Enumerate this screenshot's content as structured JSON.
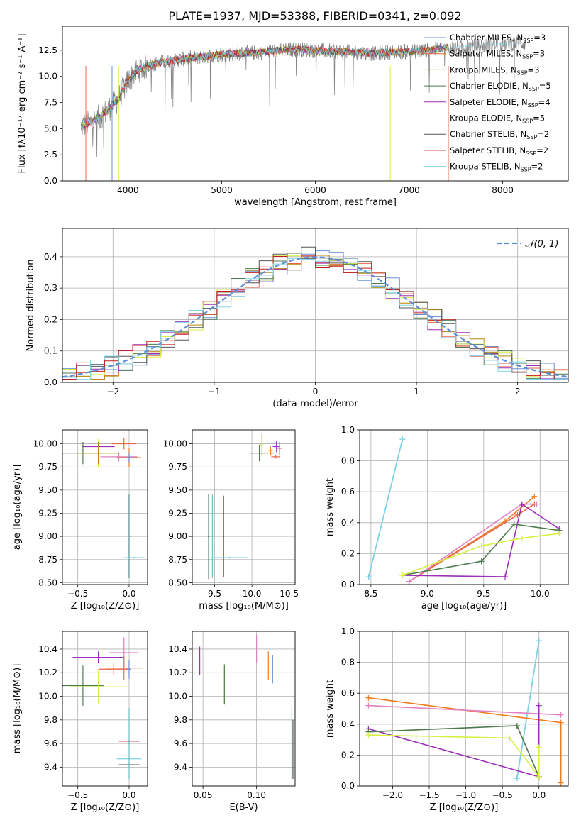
{
  "figure": {
    "title": "PLATE=1937, MJD=53388, FIBERID=0341, z=0.092"
  },
  "colors": {
    "Chabrier MILES": "#6a8fd6",
    "Salpeter MILES": "#e8664a",
    "Kroupa MILES": "#b8860b",
    "Chabrier ELODIE": "#4e7a4e",
    "Salpeter ELODIE": "#9b2fb8",
    "Kroupa ELODIE": "#d7ef3f",
    "Chabrier STELIB": "#555555",
    "Salpeter STELIB": "#c41e1e",
    "Kroupa STELIB": "#7fd3e6",
    "data": "#808080",
    "grid": "#b0b0b0",
    "normal": "#5b8fd9",
    "orange": "#f07c1c",
    "pink": "#e080c0",
    "teal": "#6dbcc0"
  },
  "chart_data": [
    {
      "id": "spectrum",
      "type": "line",
      "title": "PLATE=1937, MJD=53388, FIBERID=0341, z=0.092",
      "xlabel": "wavelength [Angstrom, rest frame]",
      "ylabel": "Flux [fλ10⁻¹⁷ erg cm⁻² s⁻¹ A⁻¹]",
      "xlim": [
        3300,
        8700
      ],
      "ylim": [
        0,
        14.8
      ],
      "xticks": [
        "4000",
        "5000",
        "6000",
        "7000",
        "8000"
      ],
      "yticks": [
        "0.0",
        "2.5",
        "5.0",
        "7.5",
        "10.0",
        "12.5"
      ],
      "grid": false,
      "legend_position": "top-right",
      "series": [
        {
          "name": "Chabrier MILES, N_SSP=3",
          "label_main": "Chabrier MILES, N",
          "label_sub": "SSP",
          "label_tail": "=3",
          "color": "#6a8fd6"
        },
        {
          "name": "Salpeter MILES, N_SSP=3",
          "label_main": "Salpeter MILES, N",
          "label_sub": "SSP",
          "label_tail": "=3",
          "color": "#e8664a"
        },
        {
          "name": "Kroupa MILES, N_SSP=3",
          "label_main": "Kroupa MILES, N",
          "label_sub": "SSP",
          "label_tail": "=3",
          "color": "#b8860b"
        },
        {
          "name": "Chabrier ELODIE, N_SSP=5",
          "label_main": "Chabrier ELODIE, N",
          "label_sub": "SSP",
          "label_tail": "=5",
          "color": "#4e7a4e"
        },
        {
          "name": "Salpeter ELODIE, N_SSP=4",
          "label_main": "Salpeter ELODIE, N",
          "label_sub": "SSP",
          "label_tail": "=4",
          "color": "#9b2fb8"
        },
        {
          "name": "Kroupa ELODIE, N_SSP=5",
          "label_main": "Kroupa ELODIE, N",
          "label_sub": "SSP",
          "label_tail": "=5",
          "color": "#d7ef3f"
        },
        {
          "name": "Chabrier STELIB, N_SSP=2",
          "label_main": "Chabrier STELIB, N",
          "label_sub": "SSP",
          "label_tail": "=2",
          "color": "#555555"
        },
        {
          "name": "Salpeter STELIB, N_SSP=2",
          "label_main": "Salpeter STELIB, N",
          "label_sub": "SSP",
          "label_tail": "=2",
          "color": "#c41e1e"
        },
        {
          "name": "Kroupa STELIB, N_SSP=2",
          "label_main": "Kroupa STELIB, N",
          "label_sub": "SSP",
          "label_tail": "=2",
          "color": "#7fd3e6"
        }
      ],
      "continuum": {
        "x": [
          3500,
          3600,
          3700,
          3800,
          3900,
          4000,
          4100,
          4200,
          4400,
          4600,
          4800,
          5000,
          5200,
          5400,
          5600,
          5800,
          6000,
          6200,
          6400,
          6600,
          6800,
          7000,
          7200,
          7400
        ],
        "y": [
          5.2,
          5.6,
          6.1,
          6.9,
          7.9,
          9.6,
          10.6,
          11.0,
          11.4,
          11.7,
          11.9,
          12.1,
          12.2,
          12.3,
          12.5,
          12.6,
          12.5,
          12.4,
          12.3,
          12.2,
          12.3,
          12.4,
          12.5,
          12.7
        ]
      },
      "model_end": [
        {
          "series": "Kroupa STELIB",
          "x": [
            7420,
            7500,
            7600,
            7700,
            7800,
            7900,
            8000,
            8100,
            8200
          ],
          "y": [
            12.7,
            12.8,
            12.9,
            12.95,
            13.0,
            13.1,
            13.1,
            13.15,
            13.2
          ]
        }
      ]
    },
    {
      "id": "residuals",
      "type": "line",
      "xlabel": "(data-model)/error",
      "ylabel": "Normed distribution",
      "xlim": [
        -2.5,
        2.5
      ],
      "ylim": [
        0,
        0.49
      ],
      "xticks": [
        "−2",
        "−1",
        "0",
        "1",
        "2"
      ],
      "yticks": [
        "0.0",
        "0.1",
        "0.2",
        "0.3",
        "0.4"
      ],
      "grid": true,
      "legend_position": "top-right",
      "legend": [
        {
          "label": "𝒩(0, 1)",
          "color": "#5b8fd9",
          "style": "dashed"
        }
      ]
    },
    {
      "id": "age-vs-Z",
      "type": "scatter",
      "xlabel": "Z [log₁₀(Z/Z⊙)]",
      "ylabel": "age  [log₁₀(age/yr)]",
      "xlim": [
        -0.65,
        0.18
      ],
      "ylim": [
        8.48,
        10.15
      ],
      "xticks": [
        "−0.5",
        "0.0"
      ],
      "yticks": [
        "8.50",
        "8.75",
        "9.00",
        "9.25",
        "9.50",
        "9.75",
        "10.00"
      ],
      "grid": true,
      "points": [
        {
          "x": -0.05,
          "y": 10.0,
          "dx": 0.12,
          "dy": 0.06,
          "color": "#e8664a"
        },
        {
          "x": -0.3,
          "y": 9.97,
          "dx": 0.16,
          "dy": 0.06,
          "color": "#9b2fb8"
        },
        {
          "x": -0.45,
          "y": 9.9,
          "dx": 0.2,
          "dy": 0.12,
          "color": "#4e7a4e"
        },
        {
          "x": -0.3,
          "y": 9.9,
          "dx": 0.2,
          "dy": 0.15,
          "color": "#d7ef3f"
        },
        {
          "x": -0.3,
          "y": 9.9,
          "dx": 0.2,
          "dy": 0.12,
          "color": "#b8860b"
        },
        {
          "x": -0.1,
          "y": 9.86,
          "dx": 0.18,
          "dy": 0.05,
          "color": "#e080c0"
        },
        {
          "x": 0.0,
          "y": 9.85,
          "dx": 0.12,
          "dy": 0.1,
          "color": "#f07c1c"
        },
        {
          "x": 0.0,
          "y": 9.85,
          "dx": 0.03,
          "dy": 0.05,
          "color": "#6a8fd6"
        },
        {
          "x": 0.0,
          "y": 9.0,
          "dx": 0.01,
          "dy": 0.45,
          "color": "#555555"
        },
        {
          "x": 0.0,
          "y": 9.0,
          "dx": 0.01,
          "dy": 0.45,
          "color": "#c41e1e"
        },
        {
          "x": 0.0,
          "y": 9.0,
          "dx": 0.01,
          "dy": 0.45,
          "color": "#6dbcc0"
        },
        {
          "x": 0.05,
          "y": 8.77,
          "dx": 0.1,
          "dy": 0.01,
          "color": "#7fd3e6"
        }
      ]
    },
    {
      "id": "age-vs-mass",
      "type": "scatter",
      "xlabel": "mass [log₁₀(M/M⊙)]",
      "ylabel": "",
      "xlim": [
        9.2,
        10.58
      ],
      "ylim": [
        8.48,
        10.15
      ],
      "xticks": [
        "9.5",
        "10.0",
        "10.5"
      ],
      "yticks": [
        "8.50",
        "8.75",
        "9.00",
        "9.25",
        "9.50",
        "9.75",
        "10.00"
      ],
      "grid": true,
      "points": [
        {
          "x": 10.13,
          "y": 9.99,
          "dx": 0.02,
          "dy": 0.12,
          "color": "#d7ef3f"
        },
        {
          "x": 10.1,
          "y": 9.9,
          "dx": 0.12,
          "dy": 0.09,
          "color": "#4e7a4e"
        },
        {
          "x": 10.33,
          "y": 9.97,
          "dx": 0.05,
          "dy": 0.06,
          "color": "#9b2fb8"
        },
        {
          "x": 10.37,
          "y": 9.95,
          "dx": 0.03,
          "dy": 0.07,
          "color": "#e080c0"
        },
        {
          "x": 10.25,
          "y": 9.93,
          "dx": 0.03,
          "dy": 0.05,
          "color": "#f07c1c"
        },
        {
          "x": 10.27,
          "y": 9.9,
          "dx": 0.03,
          "dy": 0.04,
          "color": "#6a8fd6"
        },
        {
          "x": 10.32,
          "y": 9.86,
          "dx": 0.06,
          "dy": 0.02,
          "color": "#e8664a"
        },
        {
          "x": 9.42,
          "y": 9.0,
          "dx": 0.01,
          "dy": 0.46,
          "color": "#555555"
        },
        {
          "x": 9.62,
          "y": 9.0,
          "dx": 0.01,
          "dy": 0.44,
          "color": "#c41e1e"
        },
        {
          "x": 9.47,
          "y": 9.0,
          "dx": 0.01,
          "dy": 0.45,
          "color": "#6dbcc0"
        },
        {
          "x": 9.7,
          "y": 8.77,
          "dx": 0.25,
          "dy": 0.01,
          "color": "#7fd3e6"
        }
      ]
    },
    {
      "id": "weight-vs-age",
      "type": "line",
      "xlabel": "age  [log₁₀(age/yr)]",
      "ylabel": "mass weight",
      "xlim": [
        8.4,
        10.25
      ],
      "ylim": [
        0,
        1.0
      ],
      "xticks": [
        "8.5",
        "9.0",
        "9.5",
        "10.0"
      ],
      "yticks": [
        "0.0",
        "0.2",
        "0.4",
        "0.6",
        "0.8",
        "1.0"
      ],
      "grid": true,
      "series": [
        {
          "color": "#6dbcc0",
          "x": [
            8.48,
            8.78
          ],
          "y": [
            0.05,
            0.94
          ]
        },
        {
          "color": "#7fd3e6",
          "x": [
            8.48,
            8.78
          ],
          "y": [
            0.05,
            0.94
          ]
        },
        {
          "color": "#f07c1c",
          "x": [
            8.84,
            9.69,
            9.95
          ],
          "y": [
            0.02,
            0.41,
            0.57
          ]
        },
        {
          "color": "#e8664a",
          "x": [
            8.84,
            9.8,
            9.95
          ],
          "y": [
            0.02,
            0.45,
            0.52
          ]
        },
        {
          "color": "#e080c0",
          "x": [
            8.84,
            9.84,
            9.97
          ],
          "y": [
            0.02,
            0.52,
            0.52
          ]
        },
        {
          "color": "#9b2fb8",
          "x": [
            8.78,
            9.69,
            9.84,
            10.17
          ],
          "y": [
            0.06,
            0.05,
            0.52,
            0.36
          ]
        },
        {
          "color": "#4e7a4e",
          "x": [
            8.78,
            9.48,
            9.77,
            10.17
          ],
          "y": [
            0.06,
            0.15,
            0.39,
            0.35
          ]
        },
        {
          "color": "#d7ef3f",
          "x": [
            8.78,
            9.48,
            9.84,
            10.17
          ],
          "y": [
            0.06,
            0.25,
            0.3,
            0.33
          ]
        }
      ]
    },
    {
      "id": "mass-vs-Z",
      "type": "scatter",
      "xlabel": "Z [log₁₀(Z/Z⊙)]",
      "ylabel": "mass [log₁₀(M/M⊙)]",
      "xlim": [
        -0.65,
        0.18
      ],
      "ylim": [
        9.24,
        10.55
      ],
      "xticks": [
        "−0.5",
        "0.0"
      ],
      "yticks": [
        "9.4",
        "9.6",
        "9.8",
        "10.0",
        "10.2",
        "10.4"
      ],
      "grid": true,
      "points": [
        {
          "x": -0.05,
          "y": 10.37,
          "dx": 0.14,
          "dy": 0.13,
          "color": "#e080c0"
        },
        {
          "x": -0.3,
          "y": 10.33,
          "dx": 0.25,
          "dy": 0.05,
          "color": "#9b2fb8"
        },
        {
          "x": -0.05,
          "y": 10.24,
          "dx": 0.18,
          "dy": 0.1,
          "color": "#f07c1c"
        },
        {
          "x": -0.15,
          "y": 10.23,
          "dx": 0.15,
          "dy": 0.05,
          "color": "#e8664a"
        },
        {
          "x": 0.0,
          "y": 10.23,
          "dx": 0.02,
          "dy": 0.08,
          "color": "#6a8fd6"
        },
        {
          "x": -0.45,
          "y": 10.09,
          "dx": 0.2,
          "dy": 0.17,
          "color": "#4e7a4e"
        },
        {
          "x": -0.3,
          "y": 10.08,
          "dx": 0.28,
          "dy": 0.14,
          "color": "#d7ef3f"
        },
        {
          "x": 0.0,
          "y": 9.62,
          "dx": 0.1,
          "dy": 0.01,
          "color": "#c41e1e"
        },
        {
          "x": 0.0,
          "y": 9.47,
          "dx": 0.12,
          "dy": 0.01,
          "color": "#7fd3e6"
        },
        {
          "x": 0.0,
          "y": 9.42,
          "dx": 0.1,
          "dy": 0.01,
          "color": "#555555"
        },
        {
          "x": 0.0,
          "y": 9.6,
          "dx": 0.01,
          "dy": 0.3,
          "color": "#6dbcc0"
        }
      ]
    },
    {
      "id": "mass-vs-EBV",
      "type": "scatter",
      "xlabel": "E(B-V)",
      "ylabel": "",
      "xlim": [
        0.04,
        0.136
      ],
      "ylim": [
        9.24,
        10.55
      ],
      "xticks": [
        "0.05",
        "0.10"
      ],
      "yticks": [
        "9.4",
        "9.6",
        "9.8",
        "10.0",
        "10.2",
        "10.4"
      ],
      "grid": true,
      "points": [
        {
          "x": 0.047,
          "y": 10.3,
          "dx": 0.0,
          "dy": 0.12,
          "color": "#9b2fb8"
        },
        {
          "x": 0.1,
          "y": 10.4,
          "dx": 0.0,
          "dy": 0.12,
          "color": "#e080c0"
        },
        {
          "x": 0.07,
          "y": 10.1,
          "dx": 0.0,
          "dy": 0.17,
          "color": "#d7ef3f"
        },
        {
          "x": 0.07,
          "y": 10.1,
          "dx": 0.0,
          "dy": 0.17,
          "color": "#4e7a4e"
        },
        {
          "x": 0.111,
          "y": 10.26,
          "dx": 0.0,
          "dy": 0.12,
          "color": "#f07c1c"
        },
        {
          "x": 0.115,
          "y": 10.23,
          "dx": 0.0,
          "dy": 0.12,
          "color": "#6a8fd6"
        },
        {
          "x": 0.133,
          "y": 9.6,
          "dx": 0.0,
          "dy": 0.3,
          "color": "#6dbcc0"
        },
        {
          "x": 0.134,
          "y": 9.55,
          "dx": 0.0,
          "dy": 0.25,
          "color": "#555555"
        }
      ]
    },
    {
      "id": "weight-vs-Z",
      "type": "line",
      "xlabel": "Z [log₁₀(Z/Z⊙)]",
      "ylabel": "mass weight",
      "xlim": [
        -2.45,
        0.4
      ],
      "ylim": [
        0,
        1.0
      ],
      "xticks": [
        "−2.0",
        "−1.5",
        "−1.0",
        "−0.5",
        "0.0"
      ],
      "yticks": [
        "0.0",
        "0.2",
        "0.4",
        "0.6",
        "0.8",
        "1.0"
      ],
      "grid": true,
      "series": [
        {
          "color": "#6dbcc0",
          "x": [
            -0.3,
            0.0
          ],
          "y": [
            0.05,
            0.94
          ]
        },
        {
          "color": "#7fd3e6",
          "x": [
            -0.3,
            0.0
          ],
          "y": [
            0.05,
            0.94
          ]
        },
        {
          "color": "#f07c1c",
          "x": [
            -2.33,
            0.3,
            0.3
          ],
          "y": [
            0.57,
            0.41,
            0.02
          ]
        },
        {
          "color": "#e080c0",
          "x": [
            -2.33,
            0.3
          ],
          "y": [
            0.52,
            0.46
          ]
        },
        {
          "color": "#9b2fb8",
          "x": [
            -2.33,
            0.0,
            0.0
          ],
          "y": [
            0.37,
            0.06,
            0.52
          ]
        },
        {
          "color": "#4e7a4e",
          "x": [
            -2.33,
            -0.3,
            0.0
          ],
          "y": [
            0.35,
            0.39,
            0.06
          ]
        },
        {
          "color": "#d7ef3f",
          "x": [
            -2.33,
            -0.4,
            0.0,
            0.0
          ],
          "y": [
            0.33,
            0.31,
            0.06,
            0.25
          ]
        }
      ]
    }
  ]
}
